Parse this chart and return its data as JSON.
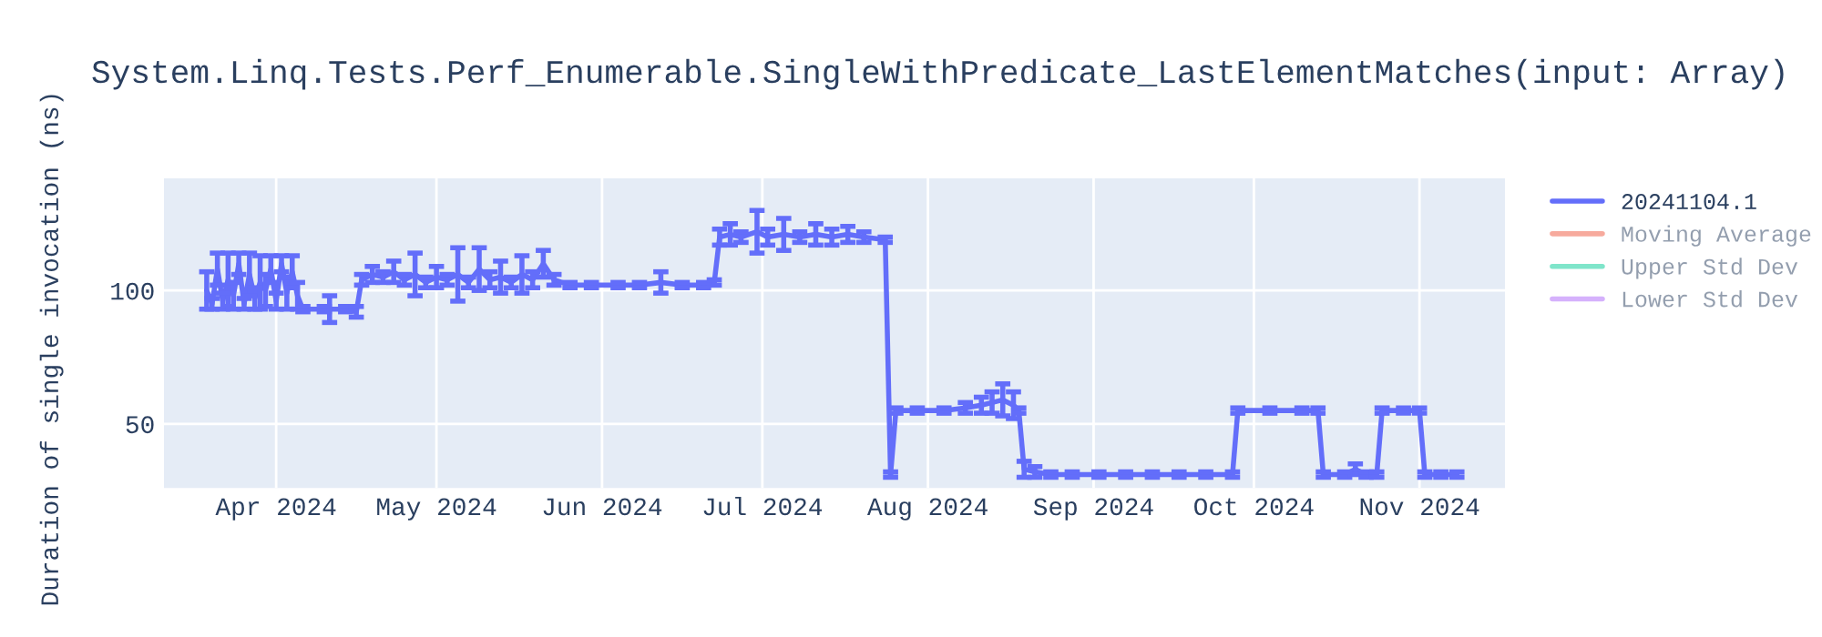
{
  "chart_data": {
    "type": "line",
    "title": "System.Linq.Tests.Perf_Enumerable.SingleWithPredicate_LastElementMatches(input: Array)",
    "ylabel": "Duration of single invocation (ns)",
    "xlim": [
      "2024-03-11",
      "2024-11-17"
    ],
    "ylim": [
      26,
      142
    ],
    "yticks": [
      50,
      100
    ],
    "xticks": [
      {
        "value": "2024-04-01",
        "label": "Apr 2024"
      },
      {
        "value": "2024-05-01",
        "label": "May 2024"
      },
      {
        "value": "2024-06-01",
        "label": "Jun 2024"
      },
      {
        "value": "2024-07-01",
        "label": "Jul 2024"
      },
      {
        "value": "2024-08-01",
        "label": "Aug 2024"
      },
      {
        "value": "2024-09-01",
        "label": "Sep 2024"
      },
      {
        "value": "2024-10-01",
        "label": "Oct 2024"
      },
      {
        "value": "2024-11-01",
        "label": "Nov 2024"
      }
    ],
    "grid": true,
    "legend": "top right",
    "marker": "none",
    "line_style": "solid",
    "series": [
      {
        "name": "20241104.1",
        "color": "#636efa",
        "x": [
          "2024-03-19",
          "2024-03-20",
          "2024-03-21",
          "2024-03-22",
          "2024-03-23",
          "2024-03-24",
          "2024-03-25",
          "2024-03-26",
          "2024-03-27",
          "2024-03-28",
          "2024-03-29",
          "2024-03-30",
          "2024-03-31",
          "2024-04-01",
          "2024-04-02",
          "2024-04-03",
          "2024-04-04",
          "2024-04-05",
          "2024-04-06",
          "2024-04-10",
          "2024-04-11",
          "2024-04-14",
          "2024-04-16",
          "2024-04-17",
          "2024-04-19",
          "2024-04-21",
          "2024-04-23",
          "2024-04-25",
          "2024-04-27",
          "2024-04-29",
          "2024-05-01",
          "2024-05-03",
          "2024-05-05",
          "2024-05-07",
          "2024-05-09",
          "2024-05-11",
          "2024-05-13",
          "2024-05-15",
          "2024-05-17",
          "2024-05-19",
          "2024-05-21",
          "2024-05-23",
          "2024-05-26",
          "2024-05-30",
          "2024-06-04",
          "2024-06-08",
          "2024-06-12",
          "2024-06-16",
          "2024-06-20",
          "2024-06-22",
          "2024-06-23",
          "2024-06-25",
          "2024-06-27",
          "2024-06-30",
          "2024-07-02",
          "2024-07-05",
          "2024-07-08",
          "2024-07-11",
          "2024-07-14",
          "2024-07-17",
          "2024-07-20",
          "2024-07-24",
          "2024-07-25",
          "2024-07-26",
          "2024-07-30",
          "2024-08-04",
          "2024-08-08",
          "2024-08-11",
          "2024-08-13",
          "2024-08-15",
          "2024-08-17",
          "2024-08-18",
          "2024-08-19",
          "2024-08-21",
          "2024-08-24",
          "2024-08-28",
          "2024-09-02",
          "2024-09-07",
          "2024-09-12",
          "2024-09-17",
          "2024-09-22",
          "2024-09-27",
          "2024-09-28",
          "2024-10-04",
          "2024-10-10",
          "2024-10-13",
          "2024-10-14",
          "2024-10-18",
          "2024-10-20",
          "2024-10-22",
          "2024-10-24",
          "2024-10-25",
          "2024-10-29",
          "2024-11-01",
          "2024-11-02",
          "2024-11-05",
          "2024-11-08"
        ],
        "values": [
          100,
          95,
          108,
          96,
          104,
          98,
          110,
          95,
          106,
          97,
          103,
          100,
          108,
          96,
          110,
          99,
          107,
          98,
          93,
          93,
          93,
          93,
          92,
          104,
          106,
          105,
          107,
          104,
          106,
          103,
          105,
          104,
          106,
          103,
          108,
          104,
          105,
          103,
          106,
          104,
          110,
          104,
          102,
          102,
          102,
          102,
          103,
          102,
          102,
          103,
          120,
          121,
          120,
          122,
          120,
          121,
          120,
          121,
          120,
          121,
          120,
          119,
          31,
          55,
          55,
          55,
          56,
          57,
          58,
          59,
          57,
          55,
          33,
          32,
          31,
          31,
          31,
          31,
          31,
          31,
          31,
          31,
          55,
          55,
          55,
          55,
          31,
          31,
          33,
          31,
          31,
          55,
          55,
          55,
          31,
          31,
          31
        ],
        "errors": [
          7,
          2,
          6,
          3,
          10,
          5,
          4,
          2,
          8,
          4,
          10,
          6,
          5,
          3,
          3,
          6,
          6,
          5,
          1,
          1,
          5,
          1,
          2,
          2,
          3,
          2,
          4,
          2,
          8,
          2,
          4,
          2,
          10,
          2,
          8,
          3,
          6,
          2,
          7,
          3,
          5,
          2,
          1,
          1,
          1,
          1,
          4,
          1,
          1,
          1,
          3,
          4,
          2,
          8,
          3,
          6,
          2,
          4,
          3,
          3,
          2,
          1,
          1,
          1,
          1,
          1,
          2,
          3,
          4,
          6,
          5,
          1,
          3,
          2,
          1,
          1,
          1,
          1,
          1,
          1,
          1,
          1,
          1,
          1,
          1,
          1,
          1,
          1,
          2,
          1,
          1,
          1,
          1,
          1,
          1,
          1,
          1
        ]
      },
      {
        "name": "Moving Average",
        "color": "#ef553b"
      },
      {
        "name": "Upper Std Dev",
        "color": "#00cc96"
      },
      {
        "name": "Lower Std Dev",
        "color": "#ab63fa"
      }
    ]
  }
}
